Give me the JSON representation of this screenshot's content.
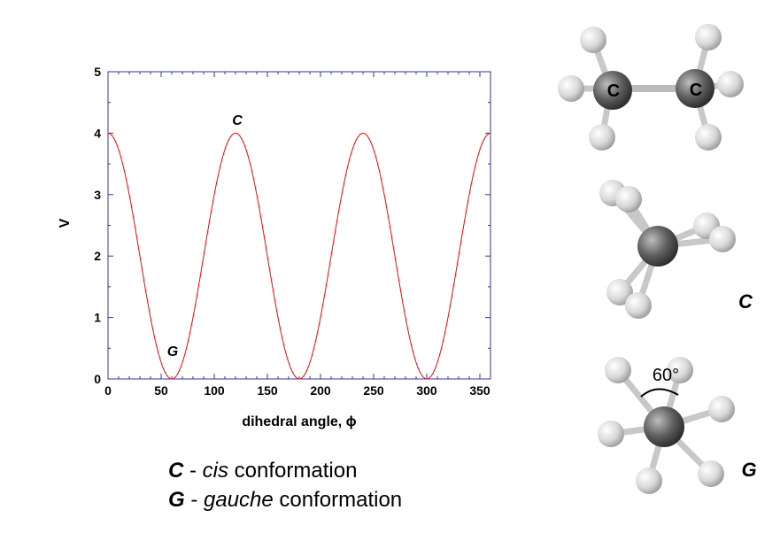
{
  "chart_data": {
    "type": "line",
    "xlabel": "dihedral angle, ϕ",
    "ylabel": "V",
    "xlim": [
      0,
      360
    ],
    "ylim": [
      0,
      5
    ],
    "xticks": [
      "0",
      "50",
      "100",
      "150",
      "200",
      "250",
      "300",
      "350"
    ],
    "yticks": [
      "0",
      "1",
      "2",
      "3",
      "4",
      "5"
    ],
    "grid": false,
    "series": [
      {
        "color": "#ff0000",
        "function": "2*(1+cos(3*phi))",
        "x": [
          0,
          20,
          40,
          60,
          80,
          100,
          120,
          140,
          160,
          180,
          200,
          220,
          240,
          260,
          280,
          300,
          320,
          340,
          360
        ],
        "y": [
          4,
          3,
          1,
          0,
          1,
          3,
          4,
          3,
          1,
          0,
          1,
          3,
          4,
          3,
          1,
          0,
          1,
          3,
          4
        ]
      }
    ],
    "annotations": [
      {
        "text": "C",
        "x": 120,
        "y": 4
      },
      {
        "text": "G",
        "x": 60,
        "y": 0
      }
    ]
  },
  "legend": {
    "c_letter": "C",
    "c_sep": " - ",
    "c_word": "cis",
    "c_rest": " conformation",
    "g_letter": "G",
    "g_sep": " - ",
    "g_word": "gauche",
    "g_rest": " conformation"
  },
  "molecules": {
    "top_atom_left": "C",
    "top_atom_right": "C",
    "cis_label": "C",
    "gauche_label": "G",
    "angle_label": "60°"
  },
  "colors": {
    "axis": "#3333aa",
    "curve": "#ff0000",
    "carbon": "#555555",
    "hydrogen": "#dddddd"
  }
}
